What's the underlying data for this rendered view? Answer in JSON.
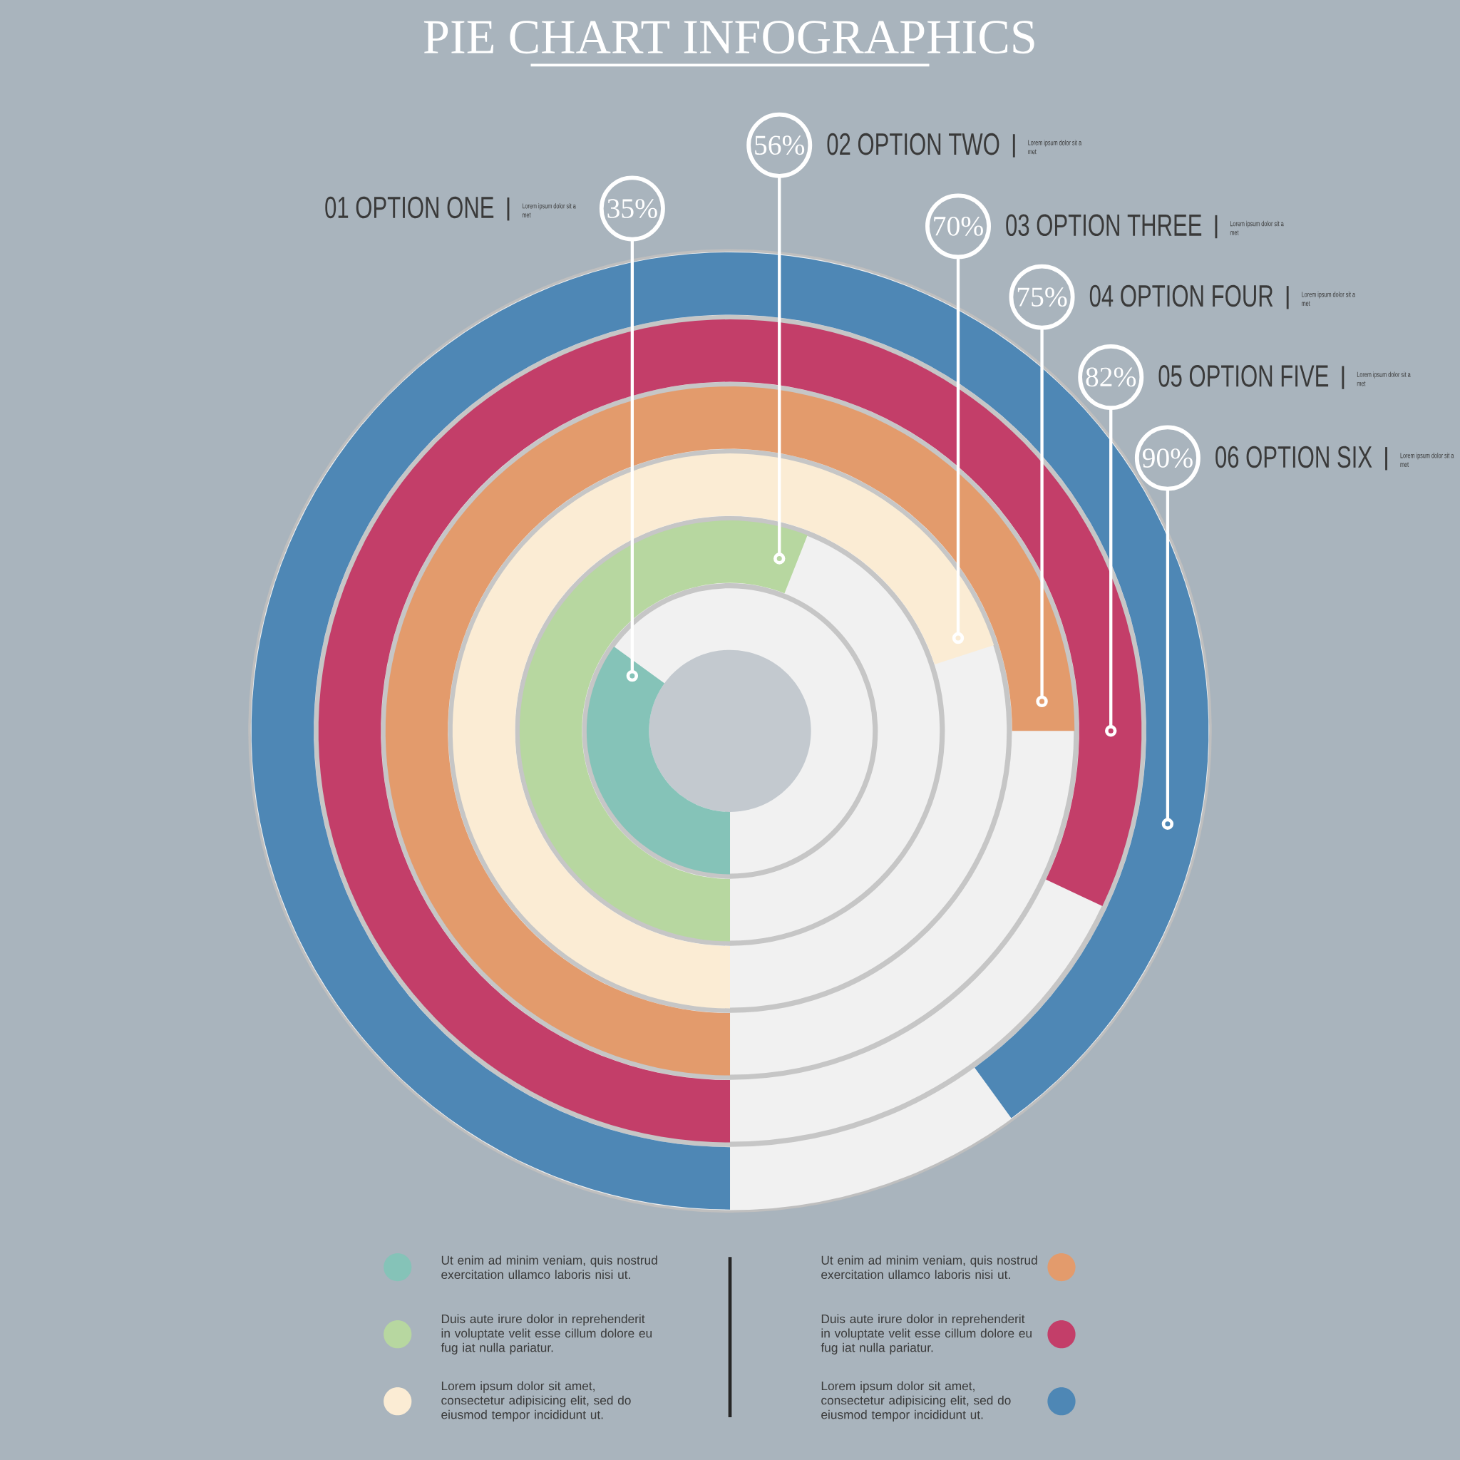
{
  "chart_data": {
    "type": "other",
    "title": "PIE CHART INFOGRAPHICS",
    "categories": [
      "01 OPTION ONE",
      "02 OPTION TWO",
      "03 OPTION THREE",
      "04 OPTION FOUR",
      "05 OPTION FIVE",
      "06 OPTION SIX"
    ],
    "values": [
      35,
      56,
      70,
      75,
      82,
      90
    ],
    "value_labels": [
      "35%",
      "56%",
      "70%",
      "75%",
      "82%",
      "90%"
    ],
    "colors": [
      "#85c3b8",
      "#b7d7a0",
      "#fbecd4",
      "#e39b6c",
      "#c33e69",
      "#4e87b5"
    ],
    "annotations": [
      "Lorem ipsum dolor sit a met",
      "Lorem ipsum dolor sit a met",
      "Lorem ipsum dolor sit a met",
      "Lorem ipsum dolor sit a met",
      "Lorem ipsum dolor sit a met",
      "Lorem ipsum dolor sit a met",
      "Ut enim ad minim veniam, quis nostrud exercitation ullamco laboris nisi ut.",
      "Duis aute irure dolor in reprehenderit in voluptate velit esse cillum dolore eu fug iat nulla pariatur.",
      "Lorem ipsum dolor sit amet, consectetur adipisicing elit, sed do eiusmod tempor incididunt ut.",
      "Ut enim ad minim veniam, quis nostrud exercitation ullamco laboris nisi ut.",
      "Duis aute irure dolor in reprehenderit in voluptate velit esse cillum dolore eu fug iat nulla pariatur.",
      "Lorem ipsum dolor sit amet, consectetur adipisicing elit, sed do eiusmod tempor incididunt ut."
    ]
  }
}
